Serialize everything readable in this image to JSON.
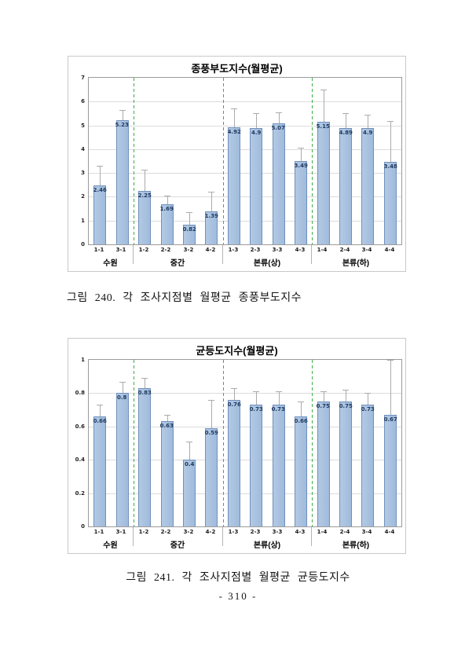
{
  "page": {
    "number": "- 310 -"
  },
  "figures": [
    {
      "caption": "그림 240. 각 조사지점별 월평균 종풍부도지수"
    },
    {
      "caption": "그림 241. 각 조사지점별 월평균 균등도지수"
    }
  ],
  "chart_data": [
    {
      "type": "bar",
      "title": "종풍부도지수(월평균)",
      "categories": [
        "1-1",
        "3-1",
        "1-2",
        "2-2",
        "3-2",
        "4-2",
        "1-3",
        "2-3",
        "3-3",
        "4-3",
        "1-4",
        "2-4",
        "3-4",
        "4-4"
      ],
      "groups": [
        {
          "label": "수원",
          "count": 2
        },
        {
          "label": "중간",
          "count": 4
        },
        {
          "label": "본류(상)",
          "count": 4
        },
        {
          "label": "본류(하)",
          "count": 4
        }
      ],
      "values": [
        2.46,
        5.23,
        2.25,
        1.69,
        0.82,
        1.39,
        4.92,
        4.9,
        5.07,
        3.49,
        5.15,
        4.89,
        4.9,
        3.48
      ],
      "error_tops": [
        3.3,
        5.65,
        3.15,
        2.05,
        1.35,
        2.2,
        5.7,
        5.5,
        5.55,
        4.05,
        6.5,
        5.5,
        5.45,
        5.2
      ],
      "ylim": [
        0,
        7
      ],
      "yticks": [
        0,
        1,
        2,
        3,
        4,
        5,
        6,
        7
      ],
      "grid": true,
      "legend": "none",
      "colors": {
        "bar_fill": "#a9c3e1",
        "bar_border": "#7090bc",
        "error_bar": "#ababab",
        "gridline": "#dcdcdc",
        "separator_green": "#3fae49",
        "value_label": "#1f3a60"
      }
    },
    {
      "type": "bar",
      "title": "균등도지수(월평균)",
      "categories": [
        "1-1",
        "3-1",
        "1-2",
        "2-2",
        "3-2",
        "4-2",
        "1-3",
        "2-3",
        "3-3",
        "4-3",
        "1-4",
        "2-4",
        "3-4",
        "4-4"
      ],
      "groups": [
        {
          "label": "수원",
          "count": 2
        },
        {
          "label": "중간",
          "count": 4
        },
        {
          "label": "본류(상)",
          "count": 4
        },
        {
          "label": "본류(하)",
          "count": 4
        }
      ],
      "values": [
        0.66,
        0.8,
        0.83,
        0.63,
        0.4,
        0.59,
        0.76,
        0.73,
        0.73,
        0.66,
        0.75,
        0.75,
        0.73,
        0.67
      ],
      "error_tops": [
        0.73,
        0.87,
        0.89,
        0.67,
        0.51,
        0.76,
        0.83,
        0.81,
        0.81,
        0.75,
        0.81,
        0.82,
        0.8,
        1.0
      ],
      "ylim": [
        0,
        1
      ],
      "yticks": [
        0,
        0.2,
        0.4,
        0.6,
        0.8,
        1
      ],
      "grid": true,
      "legend": "none",
      "colors": {
        "bar_fill": "#a9c3e1",
        "bar_border": "#7090bc",
        "error_bar": "#ababab",
        "gridline": "#dcdcdc",
        "separator_green": "#3fae49",
        "value_label": "#1f3a60"
      }
    }
  ]
}
